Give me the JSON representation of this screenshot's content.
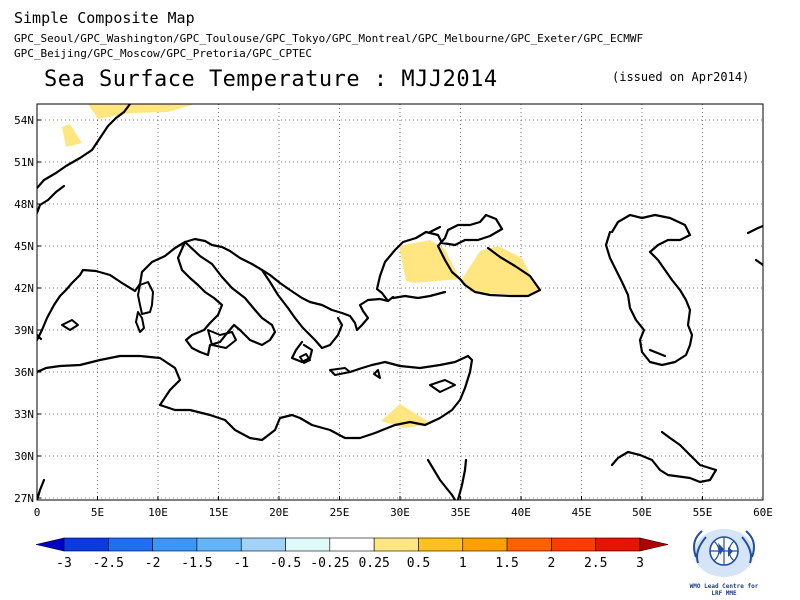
{
  "header": {
    "map_title": "Simple Composite Map",
    "gpc_line1": "GPC_Seoul/GPC_Washington/GPC_Toulouse/GPC_Tokyo/GPC_Montreal/GPC_Melbourne/GPC_Exeter/GPC_ECMWF",
    "gpc_line2": "GPC_Beijing/GPC_Moscow/GPC_Pretoria/GPC_CPTEC",
    "main_title": "Sea Surface Temperature : MJJ2014",
    "issued": "(issued on Apr2014)"
  },
  "map": {
    "lon_labels": [
      "0",
      "5E",
      "10E",
      "15E",
      "20E",
      "25E",
      "30E",
      "35E",
      "40E",
      "45E",
      "50E",
      "55E",
      "60E"
    ],
    "lat_labels": [
      "54N",
      "51N",
      "48N",
      "45N",
      "42N",
      "39N",
      "36N",
      "33N",
      "30N",
      "27N"
    ],
    "anomaly_fill_color": "#ffe680",
    "coast_color": "#000000",
    "grid": "dotted"
  },
  "colorbar": {
    "labels": [
      "-3",
      "-2.5",
      "-2",
      "-1.5",
      "-1",
      "-0.5",
      "-0.25",
      "0.25",
      "0.5",
      "1",
      "1.5",
      "2",
      "2.5",
      "3"
    ],
    "colors": [
      "#0000c8",
      "#0a3be0",
      "#1f6ff2",
      "#3c96f5",
      "#64b4fa",
      "#a0d2fa",
      "#e0fafa",
      "#ffffff",
      "#ffe680",
      "#ffc020",
      "#ffa000",
      "#ff6000",
      "#ff3c00",
      "#e61400",
      "#b00000"
    ]
  },
  "logo": {
    "line1": "WMO Lead Centre for",
    "line2": "LRF MME"
  }
}
